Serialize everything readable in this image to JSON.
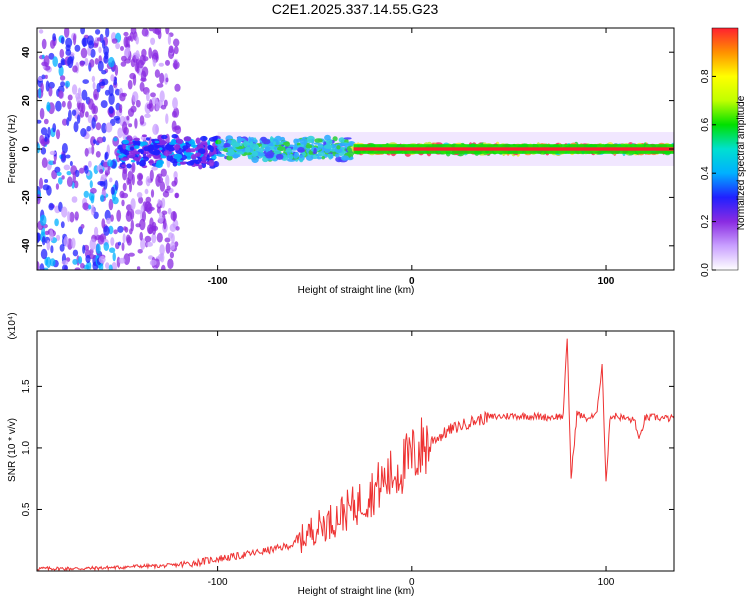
{
  "title": "C2E1.2025.337.14.55.G23",
  "chart_data": [
    {
      "type": "heatmap",
      "name": "spectrogram",
      "xlabel": "Height of straight line (km)",
      "ylabel": "Frequency (Hz)",
      "xlim": [
        -193,
        135
      ],
      "ylim": [
        -50,
        50
      ],
      "xticks": [
        -100,
        0,
        100
      ],
      "xtick_labels": [
        "-100",
        "0",
        "100"
      ],
      "yticks": [
        -40,
        -20,
        0,
        20,
        40
      ],
      "ytick_labels": [
        "-40",
        "-20",
        "0",
        "20",
        "40"
      ],
      "colorbar": {
        "label": "Normalized spectral amplitude",
        "range": [
          0,
          1
        ],
        "ticks": [
          0.0,
          0.2,
          0.4,
          0.6,
          0.8
        ],
        "tick_labels": [
          "0.0",
          "0.2",
          "0.4",
          "0.6",
          "0.8"
        ],
        "colors": [
          "#ffffff",
          "#c9a0ff",
          "#8a2be2",
          "#2020ff",
          "#00b0ff",
          "#00e0d0",
          "#00e000",
          "#c0ff00",
          "#ffff00",
          "#ff9000",
          "#ff2030"
        ]
      },
      "bands": [
        {
          "x": [
            -193,
            -150
          ],
          "f": [
            -50,
            50
          ],
          "level": 0.3
        },
        {
          "x": [
            -150,
            -120
          ],
          "f": [
            -50,
            50
          ],
          "level": 0.15
        },
        {
          "x": [
            -150,
            -100
          ],
          "f": [
            -8,
            6
          ],
          "level": 0.35
        },
        {
          "x": [
            -100,
            -30
          ],
          "f": [
            -5,
            5
          ],
          "level": 0.55
        },
        {
          "x": [
            -30,
            135
          ],
          "f": [
            -2,
            2
          ],
          "level": 0.95
        }
      ]
    },
    {
      "type": "line",
      "name": "snr",
      "xlabel": "Height of straight line (km)",
      "ylabel": "SNR (10 * v/v)",
      "y_scale_label": "(x10⁴)",
      "xlim": [
        -193,
        135
      ],
      "ylim": [
        0,
        1.95
      ],
      "xticks": [
        -100,
        0,
        100
      ],
      "xtick_labels": [
        "-100",
        "0",
        "100"
      ],
      "yticks": [
        0.5,
        1.0,
        1.5
      ],
      "ytick_labels": [
        "0.5",
        "1.0",
        "1.5"
      ],
      "color": "#ee3333",
      "series": [
        {
          "name": "SNR",
          "x": [
            -193,
            -170,
            -150,
            -140,
            -130,
            -120,
            -110,
            -100,
            -90,
            -80,
            -70,
            -60,
            -55,
            -50,
            -45,
            -40,
            -35,
            -30,
            -25,
            -20,
            -15,
            -10,
            -5,
            0,
            5,
            10,
            15,
            20,
            25,
            30,
            35,
            40,
            50,
            60,
            70,
            78,
            80,
            82,
            85,
            90,
            95,
            98,
            100,
            102,
            105,
            110,
            115,
            117,
            120,
            125,
            130,
            135
          ],
          "y": [
            0.02,
            0.02,
            0.03,
            0.04,
            0.04,
            0.05,
            0.07,
            0.1,
            0.12,
            0.15,
            0.18,
            0.22,
            0.28,
            0.35,
            0.38,
            0.42,
            0.48,
            0.52,
            0.58,
            0.65,
            0.72,
            0.78,
            0.85,
            0.92,
            1.0,
            1.06,
            1.1,
            1.15,
            1.18,
            1.21,
            1.23,
            1.25,
            1.26,
            1.26,
            1.25,
            1.26,
            1.9,
            0.75,
            1.28,
            1.24,
            1.26,
            1.68,
            0.7,
            1.25,
            1.26,
            1.24,
            1.22,
            1.05,
            1.24,
            1.25,
            1.24,
            1.24
          ]
        }
      ]
    }
  ]
}
